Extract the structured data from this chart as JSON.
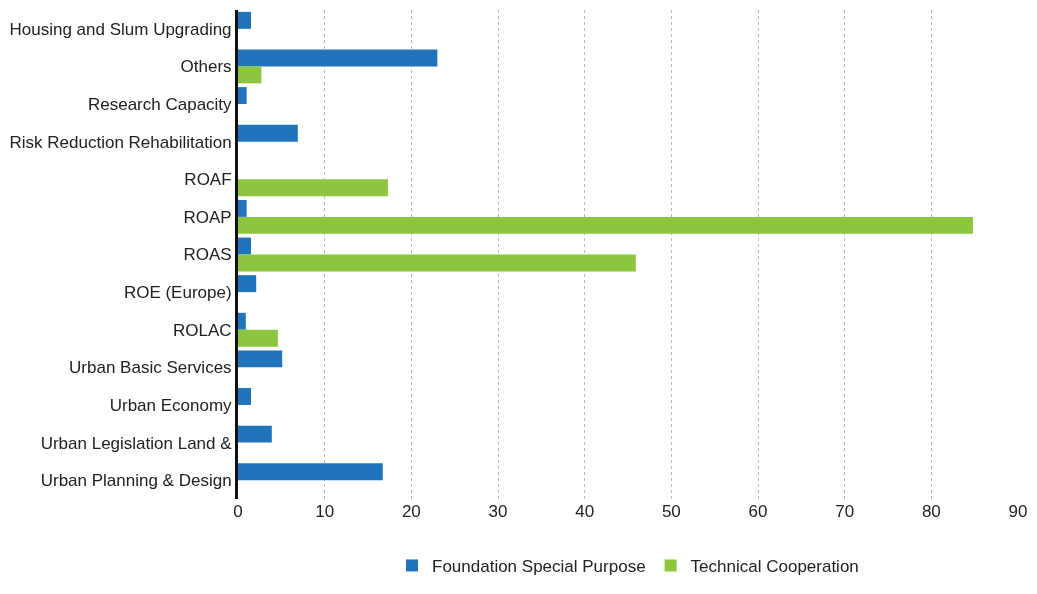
{
  "chart_data": {
    "type": "bar",
    "orientation": "horizontal",
    "categories": [
      "Housing and Slum Upgrading",
      "Others",
      "Research Capacity",
      "Risk Reduction Rehabilitation",
      "ROAF",
      "ROAP",
      "ROAS",
      "ROE (Europe)",
      "ROLAC",
      "Urban Basic Services",
      "Urban Economy",
      "Urban Legislation Land &",
      "Urban Planning & Design"
    ],
    "series": [
      {
        "name": "Foundation Special Purpose",
        "color": "#1f74bb",
        "values": [
          1.5,
          23.0,
          1.0,
          6.9,
          null,
          1.0,
          1.5,
          2.1,
          0.9,
          5.1,
          1.5,
          3.9,
          16.7
        ]
      },
      {
        "name": "Technical Cooperation",
        "color": "#8cc63f",
        "values": [
          null,
          2.7,
          null,
          null,
          17.3,
          84.8,
          45.9,
          null,
          4.6,
          null,
          null,
          null,
          null
        ]
      }
    ],
    "xlim": [
      0,
      90
    ],
    "xticks": [
      0,
      10,
      20,
      30,
      40,
      50,
      60,
      70,
      80,
      90
    ],
    "grid": "x",
    "legend": "bottom"
  }
}
